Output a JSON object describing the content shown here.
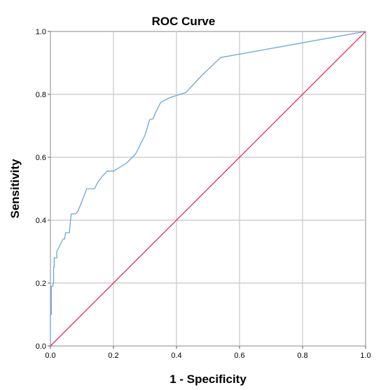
{
  "chart_data": {
    "type": "line",
    "title": "ROC Curve",
    "xlabel": "1 - Specificity",
    "ylabel": "Sensitivity",
    "xlim": [
      0.0,
      1.0
    ],
    "ylim": [
      0.0,
      1.0
    ],
    "x_ticks": [
      "0.0",
      "0.2",
      "0.4",
      "0.6",
      "0.8",
      "1.0"
    ],
    "y_ticks": [
      "0.0",
      "0.2",
      "0.4",
      "0.6",
      "0.8",
      "1.0"
    ],
    "grid": true,
    "legend": "none",
    "series": [
      {
        "color": "#6aa6e0",
        "points": [
          [
            0.0,
            0.0
          ],
          [
            0.0,
            0.1
          ],
          [
            0.003,
            0.1
          ],
          [
            0.003,
            0.19
          ],
          [
            0.008,
            0.19
          ],
          [
            0.008,
            0.2
          ],
          [
            0.01,
            0.2
          ],
          [
            0.01,
            0.25
          ],
          [
            0.012,
            0.25
          ],
          [
            0.012,
            0.28
          ],
          [
            0.02,
            0.28
          ],
          [
            0.02,
            0.3
          ],
          [
            0.025,
            0.31
          ],
          [
            0.03,
            0.32
          ],
          [
            0.035,
            0.33
          ],
          [
            0.04,
            0.34
          ],
          [
            0.045,
            0.34
          ],
          [
            0.048,
            0.36
          ],
          [
            0.055,
            0.36
          ],
          [
            0.06,
            0.36
          ],
          [
            0.063,
            0.39
          ],
          [
            0.066,
            0.42
          ],
          [
            0.08,
            0.42
          ],
          [
            0.088,
            0.43
          ],
          [
            0.1,
            0.46
          ],
          [
            0.115,
            0.5
          ],
          [
            0.14,
            0.5
          ],
          [
            0.15,
            0.52
          ],
          [
            0.165,
            0.54
          ],
          [
            0.18,
            0.556
          ],
          [
            0.2,
            0.556
          ],
          [
            0.24,
            0.58
          ],
          [
            0.27,
            0.61
          ],
          [
            0.3,
            0.67
          ],
          [
            0.315,
            0.72
          ],
          [
            0.325,
            0.722
          ],
          [
            0.335,
            0.745
          ],
          [
            0.35,
            0.775
          ],
          [
            0.38,
            0.79
          ],
          [
            0.43,
            0.806
          ],
          [
            0.48,
            0.86
          ],
          [
            0.54,
            0.917
          ],
          [
            1.0,
            1.0
          ]
        ]
      },
      {
        "color": "#e8264c",
        "points": [
          [
            0.0,
            0.0
          ],
          [
            1.0,
            1.0
          ]
        ]
      }
    ]
  }
}
